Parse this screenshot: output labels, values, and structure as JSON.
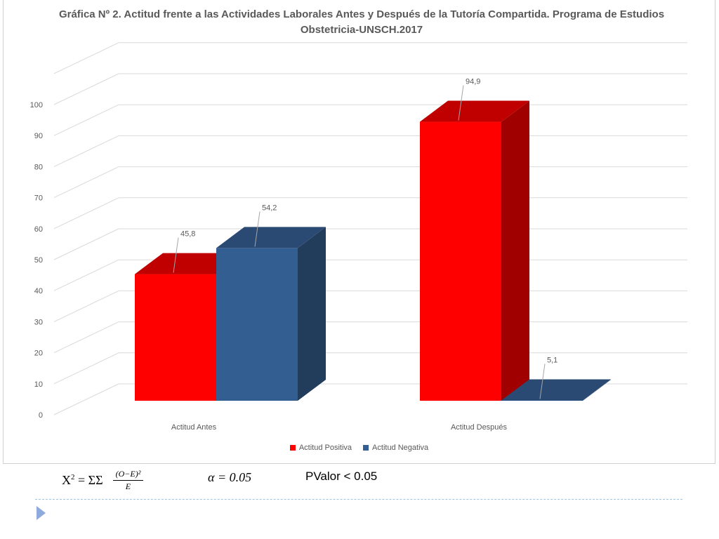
{
  "chart_data": {
    "type": "bar",
    "title": "Gráfica Nº 2. Actitud frente a las Actividades Laborales Antes y Después de la Tutoría Compartida. Programa de Estudios Obstetricia-UNSCH.2017",
    "categories": [
      "Actitud Antes",
      "Actitud Después"
    ],
    "series": [
      {
        "name": "Actitud Positiva",
        "values": [
          45.8,
          94.9
        ],
        "labels": [
          "45,8",
          "94,9"
        ],
        "color": "#ff0000",
        "top_color": "#c00000",
        "side_color": "#a00000"
      },
      {
        "name": "Actitud Negativa",
        "values": [
          54.2,
          5.1
        ],
        "labels": [
          "54,2",
          "5,1"
        ],
        "color": "#335e91",
        "top_color": "#2a4a73",
        "side_color": "#223c5c"
      }
    ],
    "yticks": [
      "0",
      "10",
      "20",
      "30",
      "40",
      "50",
      "60",
      "70",
      "80",
      "90",
      "100"
    ],
    "ylim": [
      0,
      110
    ],
    "grid": true,
    "legend_position": "bottom",
    "xlabel": "",
    "ylabel": ""
  },
  "formulas": {
    "chi_lhs": "X",
    "chi_exp": "2",
    "chi_eq": "= ΣΣ",
    "frac_num": "(O−E)²",
    "frac_den": "E",
    "alpha": "α = 0.05",
    "p_value": "PValor < 0.05"
  }
}
